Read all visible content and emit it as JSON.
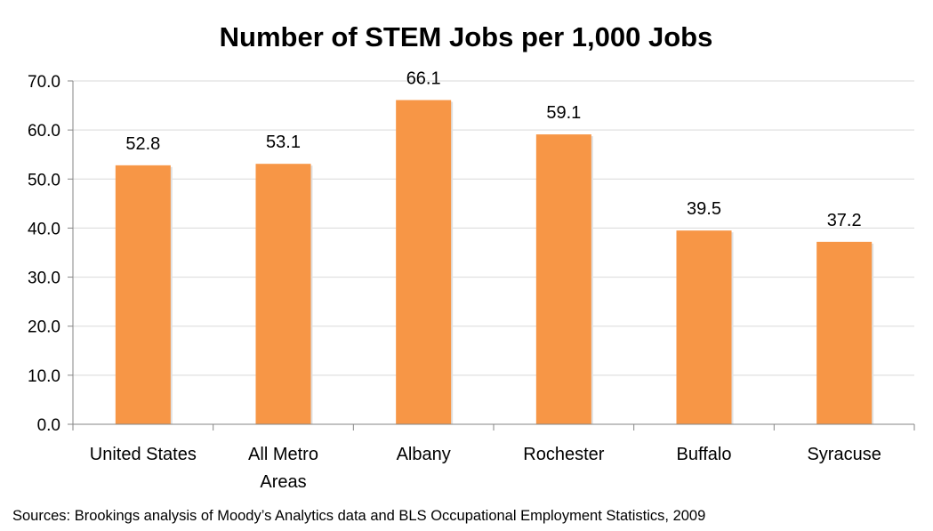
{
  "chart_data": {
    "type": "bar",
    "title": "Number of STEM Jobs per 1,000 Jobs",
    "categories": [
      [
        "United States"
      ],
      [
        "All Metro",
        "Areas"
      ],
      [
        "Albany"
      ],
      [
        "Rochester"
      ],
      [
        "Buffalo"
      ],
      [
        "Syracuse"
      ]
    ],
    "values": [
      52.8,
      53.1,
      66.1,
      59.1,
      39.5,
      37.2
    ],
    "value_labels": [
      "52.8",
      "53.1",
      "66.1",
      "59.1",
      "39.5",
      "37.2"
    ],
    "ylim": [
      0,
      70
    ],
    "yticks": [
      0,
      10,
      20,
      30,
      40,
      50,
      60,
      70
    ],
    "ytick_labels": [
      "0.0",
      "10.0",
      "20.0",
      "30.0",
      "40.0",
      "50.0",
      "60.0",
      "70.0"
    ],
    "grid": true,
    "bar_color": "#f79646",
    "xlabel": "",
    "ylabel": ""
  },
  "footer": {
    "source": "Sources: Brookings analysis of Moody’s Analytics data and BLS Occupational Employment Statistics, 2009"
  }
}
